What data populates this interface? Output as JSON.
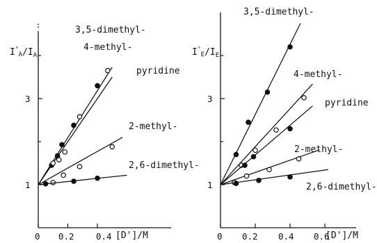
{
  "chart_data": [
    {
      "type": "scatter",
      "panel": "left",
      "ylabel": "I°A / IA",
      "xlabel": "[D']/M",
      "xlim": [
        0,
        0.6
      ],
      "ylim": [
        0,
        4.6
      ],
      "x_ticks": [
        "0",
        "0.2",
        "0.4"
      ],
      "y_ticks": [
        "1",
        "3"
      ],
      "series": [
        {
          "name": "3,5-dimethyl-",
          "marker": "filled",
          "x": [
            0.09,
            0.13,
            0.16,
            0.24,
            0.4
          ],
          "y": [
            1.45,
            1.67,
            1.93,
            2.38,
            3.3
          ],
          "fit": [
            [
              0,
              1.0
            ],
            [
              0.5,
              3.73
            ]
          ]
        },
        {
          "name": "4-methyl-",
          "marker": "filled",
          "x": [],
          "y": [],
          "fit": []
        },
        {
          "name": "pyridine",
          "marker": "open",
          "x": [
            0.1,
            0.14,
            0.18,
            0.28,
            0.47
          ],
          "y": [
            1.5,
            1.58,
            1.76,
            2.58,
            3.65
          ],
          "fit": [
            [
              0,
              1.0
            ],
            [
              0.5,
              3.5
            ]
          ]
        },
        {
          "name": "2-methyl-",
          "marker": "open",
          "x": [
            0.1,
            0.17,
            0.28,
            0.5
          ],
          "y": [
            1.05,
            1.22,
            1.42,
            1.88
          ],
          "fit": [
            [
              0,
              1.0
            ],
            [
              0.57,
              2.1
            ]
          ]
        },
        {
          "name": "2,6-dimethyl-",
          "marker": "filled",
          "x": [
            0.05,
            0.24,
            0.4
          ],
          "y": [
            1.02,
            1.08,
            1.15
          ],
          "fit": [
            [
              0,
              1.0
            ],
            [
              0.6,
              1.22
            ]
          ]
        }
      ]
    },
    {
      "type": "scatter",
      "panel": "right",
      "ylabel": "I°E / IE",
      "xlabel": "[D']/M",
      "xlim": [
        0,
        0.65
      ],
      "ylim": [
        0,
        4.6
      ],
      "x_ticks": [
        "0",
        "0.2",
        "0.4",
        "0.6"
      ],
      "y_ticks": [
        "1",
        "3"
      ],
      "series": [
        {
          "name": "3,5-dimethyl-",
          "marker": "filled",
          "x": [
            0.09,
            0.16,
            0.27,
            0.4
          ],
          "y": [
            1.7,
            2.45,
            3.15,
            4.2
          ],
          "fit": [
            [
              0,
              1.0
            ],
            [
              0.46,
              4.75
            ]
          ]
        },
        {
          "name": "4-methyl-",
          "marker": "open",
          "x": [
            0.12,
            0.2,
            0.32,
            0.48
          ],
          "y": [
            1.45,
            1.8,
            2.27,
            3.02
          ],
          "fit": [
            [
              0,
              1.0
            ],
            [
              0.53,
              3.34
            ]
          ]
        },
        {
          "name": "pyridine",
          "marker": "filled",
          "x": [
            0.14,
            0.19,
            0.4
          ],
          "y": [
            1.45,
            1.65,
            2.3
          ],
          "fit": [
            [
              0,
              1.0
            ],
            [
              0.53,
              2.83
            ]
          ]
        },
        {
          "name": "2-methyl-",
          "marker": "open",
          "x": [
            0.08,
            0.15,
            0.28,
            0.45
          ],
          "y": [
            1.05,
            1.2,
            1.35,
            1.6
          ],
          "fit": [
            [
              0,
              1.0
            ],
            [
              0.57,
              1.81
            ]
          ]
        },
        {
          "name": "2,6-dimethyl-",
          "marker": "filled",
          "x": [
            0.09,
            0.22,
            0.4
          ],
          "y": [
            1.03,
            1.1,
            1.18
          ],
          "fit": [
            [
              0,
              1.0
            ],
            [
              0.62,
              1.35
            ]
          ]
        }
      ]
    }
  ]
}
